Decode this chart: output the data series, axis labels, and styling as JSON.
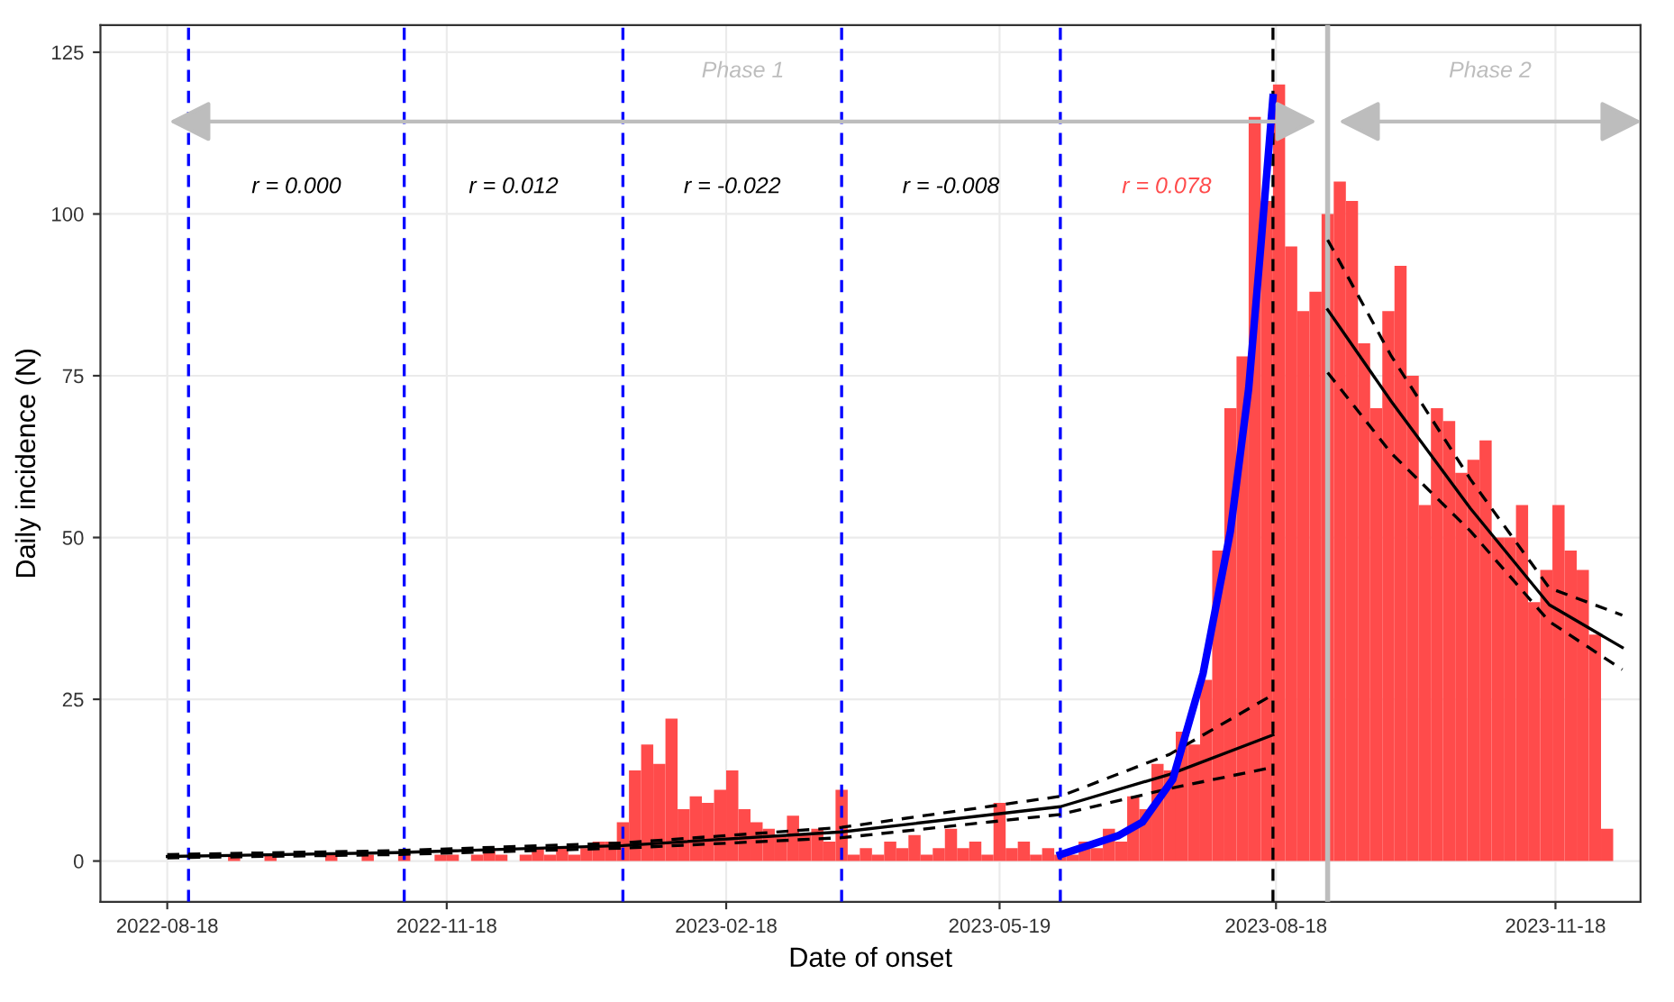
{
  "chart_data": {
    "type": "bar",
    "xlabel": "Date of onset",
    "ylabel": "Daily incidence (N)",
    "xlim": [
      "2022-07-27",
      "2023-12-16"
    ],
    "ylim": [
      -6.3,
      129.2
    ],
    "xticks": [
      "2022-08-18",
      "2022-11-18",
      "2023-02-18",
      "2023-05-19",
      "2023-08-18",
      "2023-11-18"
    ],
    "yticks": [
      0,
      25,
      50,
      75,
      100,
      125
    ],
    "grid": true,
    "series": [
      {
        "color": "#ff4b4b",
        "x": [
          "2022-08-22",
          "2022-08-26",
          "2022-08-30",
          "2022-09-03",
          "2022-09-07",
          "2022-09-11",
          "2022-09-15",
          "2022-09-19",
          "2022-09-23",
          "2022-09-27",
          "2022-10-01",
          "2022-10-05",
          "2022-10-09",
          "2022-10-13",
          "2022-10-17",
          "2022-10-21",
          "2022-10-25",
          "2022-10-29",
          "2022-11-02",
          "2022-11-06",
          "2022-11-10",
          "2022-11-14",
          "2022-11-18",
          "2022-11-22",
          "2022-11-26",
          "2022-11-30",
          "2022-12-04",
          "2022-12-08",
          "2022-12-12",
          "2022-12-16",
          "2022-12-20",
          "2022-12-24",
          "2022-12-28",
          "2023-01-01",
          "2023-01-05",
          "2023-01-09",
          "2023-01-13",
          "2023-01-17",
          "2023-01-21",
          "2023-01-25",
          "2023-01-29",
          "2023-02-02",
          "2023-02-06",
          "2023-02-10",
          "2023-02-14",
          "2023-02-18",
          "2023-02-22",
          "2023-02-26",
          "2023-03-02",
          "2023-03-06",
          "2023-03-10",
          "2023-03-14",
          "2023-03-18",
          "2023-03-22",
          "2023-03-26",
          "2023-03-30",
          "2023-04-03",
          "2023-04-07",
          "2023-04-11",
          "2023-04-15",
          "2023-04-19",
          "2023-04-23",
          "2023-04-27",
          "2023-05-01",
          "2023-05-05",
          "2023-05-09",
          "2023-05-13",
          "2023-05-17",
          "2023-05-21",
          "2023-05-25",
          "2023-05-29",
          "2023-06-02",
          "2023-06-06",
          "2023-06-10",
          "2023-06-14",
          "2023-06-18",
          "2023-06-22",
          "2023-06-26",
          "2023-06-30",
          "2023-07-04",
          "2023-07-08",
          "2023-07-12",
          "2023-07-16",
          "2023-07-20",
          "2023-07-24",
          "2023-07-28",
          "2023-08-01",
          "2023-08-05",
          "2023-08-09",
          "2023-08-13",
          "2023-08-17",
          "2023-08-21",
          "2023-08-25",
          "2023-08-29",
          "2023-09-02",
          "2023-09-06",
          "2023-09-10",
          "2023-09-14",
          "2023-09-18",
          "2023-09-22",
          "2023-09-26",
          "2023-09-30",
          "2023-10-04",
          "2023-10-08",
          "2023-10-12",
          "2023-10-16",
          "2023-10-20",
          "2023-10-24",
          "2023-10-28",
          "2023-11-01",
          "2023-11-05",
          "2023-11-09",
          "2023-11-13",
          "2023-11-17",
          "2023-11-21",
          "2023-11-25",
          "2023-11-29",
          "2023-12-03"
        ],
        "values": [
          0,
          null,
          0,
          0,
          1,
          0,
          0,
          1,
          0,
          0,
          0,
          0,
          1,
          0,
          0,
          1,
          0,
          0,
          1,
          0,
          0,
          1,
          1,
          0,
          1,
          2,
          1,
          0,
          1,
          2,
          1,
          2,
          1,
          2,
          3,
          3,
          6,
          14,
          18,
          15,
          22,
          8,
          10,
          9,
          11,
          14,
          8,
          6,
          5,
          4,
          7,
          4,
          5,
          3,
          11,
          1,
          2,
          1,
          3,
          2,
          4,
          1,
          2,
          5,
          2,
          3,
          1,
          9,
          2,
          3,
          1,
          2,
          1,
          1,
          3,
          2,
          5,
          3,
          10,
          8,
          15,
          14,
          20,
          18,
          28,
          48,
          70,
          78,
          115,
          102,
          120,
          95,
          85,
          88,
          100,
          105,
          102,
          80,
          70,
          85,
          92,
          75,
          55,
          70,
          68,
          60,
          62,
          65,
          50,
          50,
          55,
          40,
          45,
          55,
          48,
          45,
          35,
          5
        ]
      },
      {
        "type": "line",
        "color": "#000000",
        "line_style": "solid",
        "x": [
          "2022-08-18",
          "2022-11-01",
          "2023-01-15",
          "2023-03-28",
          "2023-06-08",
          "2023-07-14",
          "2023-08-17"
        ],
        "values": [
          0.7,
          1.3,
          2.4,
          4.5,
          8.4,
          13.4,
          19.5
        ]
      },
      {
        "type": "line",
        "color": "#000000",
        "line_style": "dashed",
        "x": [
          "2022-08-18",
          "2022-11-01",
          "2023-01-15",
          "2023-03-28",
          "2023-06-08",
          "2023-07-14",
          "2023-08-17"
        ],
        "values": [
          1.0,
          1.6,
          2.8,
          5.2,
          10.0,
          16.5,
          25.7
        ]
      },
      {
        "type": "line",
        "color": "#000000",
        "line_style": "dashed",
        "x": [
          "2022-08-18",
          "2022-11-01",
          "2023-01-15",
          "2023-03-28",
          "2023-06-08",
          "2023-07-14",
          "2023-08-17"
        ],
        "values": [
          0.5,
          1.0,
          2.0,
          3.6,
          7.2,
          11.2,
          14.5
        ]
      },
      {
        "type": "line",
        "color": "#0000ff",
        "line_style": "solid",
        "x": [
          "2023-06-08",
          "2023-06-27",
          "2023-07-05",
          "2023-07-15",
          "2023-07-25",
          "2023-08-03",
          "2023-08-09",
          "2023-08-13",
          "2023-08-17"
        ],
        "values": [
          1,
          3.9,
          6,
          12.6,
          29,
          51,
          73,
          95,
          118
        ]
      },
      {
        "type": "line",
        "color": "#000000",
        "line_style": "solid",
        "x": [
          "2023-09-04",
          "2023-09-25",
          "2023-10-21",
          "2023-11-16",
          "2023-12-10"
        ],
        "values": [
          85.2,
          71,
          54.5,
          39.6,
          33
        ]
      },
      {
        "type": "line",
        "color": "#000000",
        "line_style": "dashed",
        "x": [
          "2023-09-04",
          "2023-09-25",
          "2023-10-21",
          "2023-11-16",
          "2023-12-10"
        ],
        "values": [
          96,
          78,
          59,
          42.2,
          38
        ]
      },
      {
        "type": "line",
        "color": "#000000",
        "line_style": "dashed",
        "x": [
          "2023-09-04",
          "2023-09-25",
          "2023-10-21",
          "2023-11-16",
          "2023-12-10"
        ],
        "values": [
          75.5,
          63,
          51,
          37,
          29.6
        ]
      }
    ],
    "ref_lines": [
      {
        "axis": "x",
        "value": "2022-08-25",
        "color": "#0000ff",
        "line_style": "dashed"
      },
      {
        "axis": "x",
        "value": "2022-11-04",
        "color": "#0000ff",
        "line_style": "dashed"
      },
      {
        "axis": "x",
        "value": "2023-01-15",
        "color": "#0000ff",
        "line_style": "dashed"
      },
      {
        "axis": "x",
        "value": "2023-03-28",
        "color": "#0000ff",
        "line_style": "dashed"
      },
      {
        "axis": "x",
        "value": "2023-06-08",
        "color": "#0000ff",
        "line_style": "dashed"
      },
      {
        "axis": "x",
        "value": "2023-08-17",
        "color": "#000000",
        "line_style": "dashed"
      },
      {
        "axis": "x",
        "value": "2023-09-04",
        "color": "#bdbdbd",
        "line_style": "solid"
      }
    ],
    "annotations": [
      "Phase 1",
      "Phase 2",
      "r = 0.000",
      "r = 0.012",
      "r = -0.022",
      "r = -0.008",
      "r = 0.078"
    ]
  }
}
